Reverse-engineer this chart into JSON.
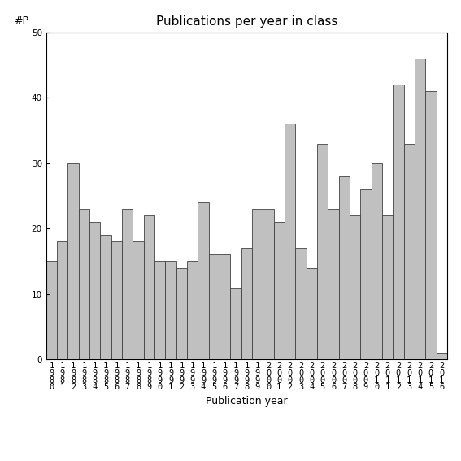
{
  "title": "Publications per year in class",
  "xlabel": "Publication year",
  "ylabel": "#P",
  "years": [
    1980,
    1981,
    1982,
    1983,
    1984,
    1985,
    1986,
    1987,
    1988,
    1989,
    1990,
    1991,
    1992,
    1993,
    1994,
    1995,
    1996,
    1997,
    1998,
    1999,
    2000,
    2001,
    2002,
    2003,
    2004,
    2005,
    2006,
    2007,
    2008,
    2009,
    2010,
    2011,
    2012,
    2013,
    2014,
    2015,
    2016
  ],
  "values": [
    15,
    18,
    30,
    23,
    21,
    19,
    18,
    23,
    18,
    22,
    15,
    15,
    14,
    15,
    24,
    16,
    16,
    11,
    17,
    23,
    23,
    21,
    36,
    17,
    14,
    33,
    23,
    28,
    22,
    26,
    30,
    22,
    42,
    33,
    46,
    41,
    1
  ],
  "bar_color": "#c0c0c0",
  "bar_edgecolor": "#404040",
  "ylim": [
    0,
    50
  ],
  "yticks": [
    0,
    10,
    20,
    30,
    40,
    50
  ],
  "bg_color": "#ffffff",
  "title_fontsize": 11,
  "label_fontsize": 9,
  "tick_fontsize": 7.5
}
